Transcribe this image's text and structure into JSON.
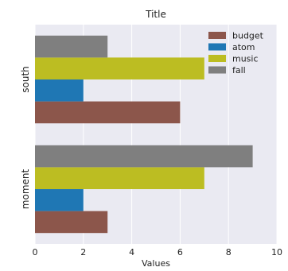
{
  "chart_data": {
    "type": "bar",
    "orientation": "horizontal",
    "title": "Title",
    "xlabel": "Values",
    "ylabel": "",
    "xlim": [
      0,
      10
    ],
    "xticks": [
      0,
      2,
      4,
      6,
      8,
      10
    ],
    "categories": [
      "moment",
      "south"
    ],
    "series": [
      {
        "name": "budget",
        "values": [
          3,
          6
        ],
        "color": "#8c564b"
      },
      {
        "name": "atom",
        "values": [
          2,
          2
        ],
        "color": "#1f77b4"
      },
      {
        "name": "music",
        "values": [
          7,
          7
        ],
        "color": "#bcbd22"
      },
      {
        "name": "fall",
        "values": [
          9,
          3
        ],
        "color": "#7f7f7f"
      }
    ],
    "grid": true,
    "legend": "top-right",
    "colors": {
      "plot_background": "#eaeaf2",
      "grid": "#ffffff"
    }
  }
}
